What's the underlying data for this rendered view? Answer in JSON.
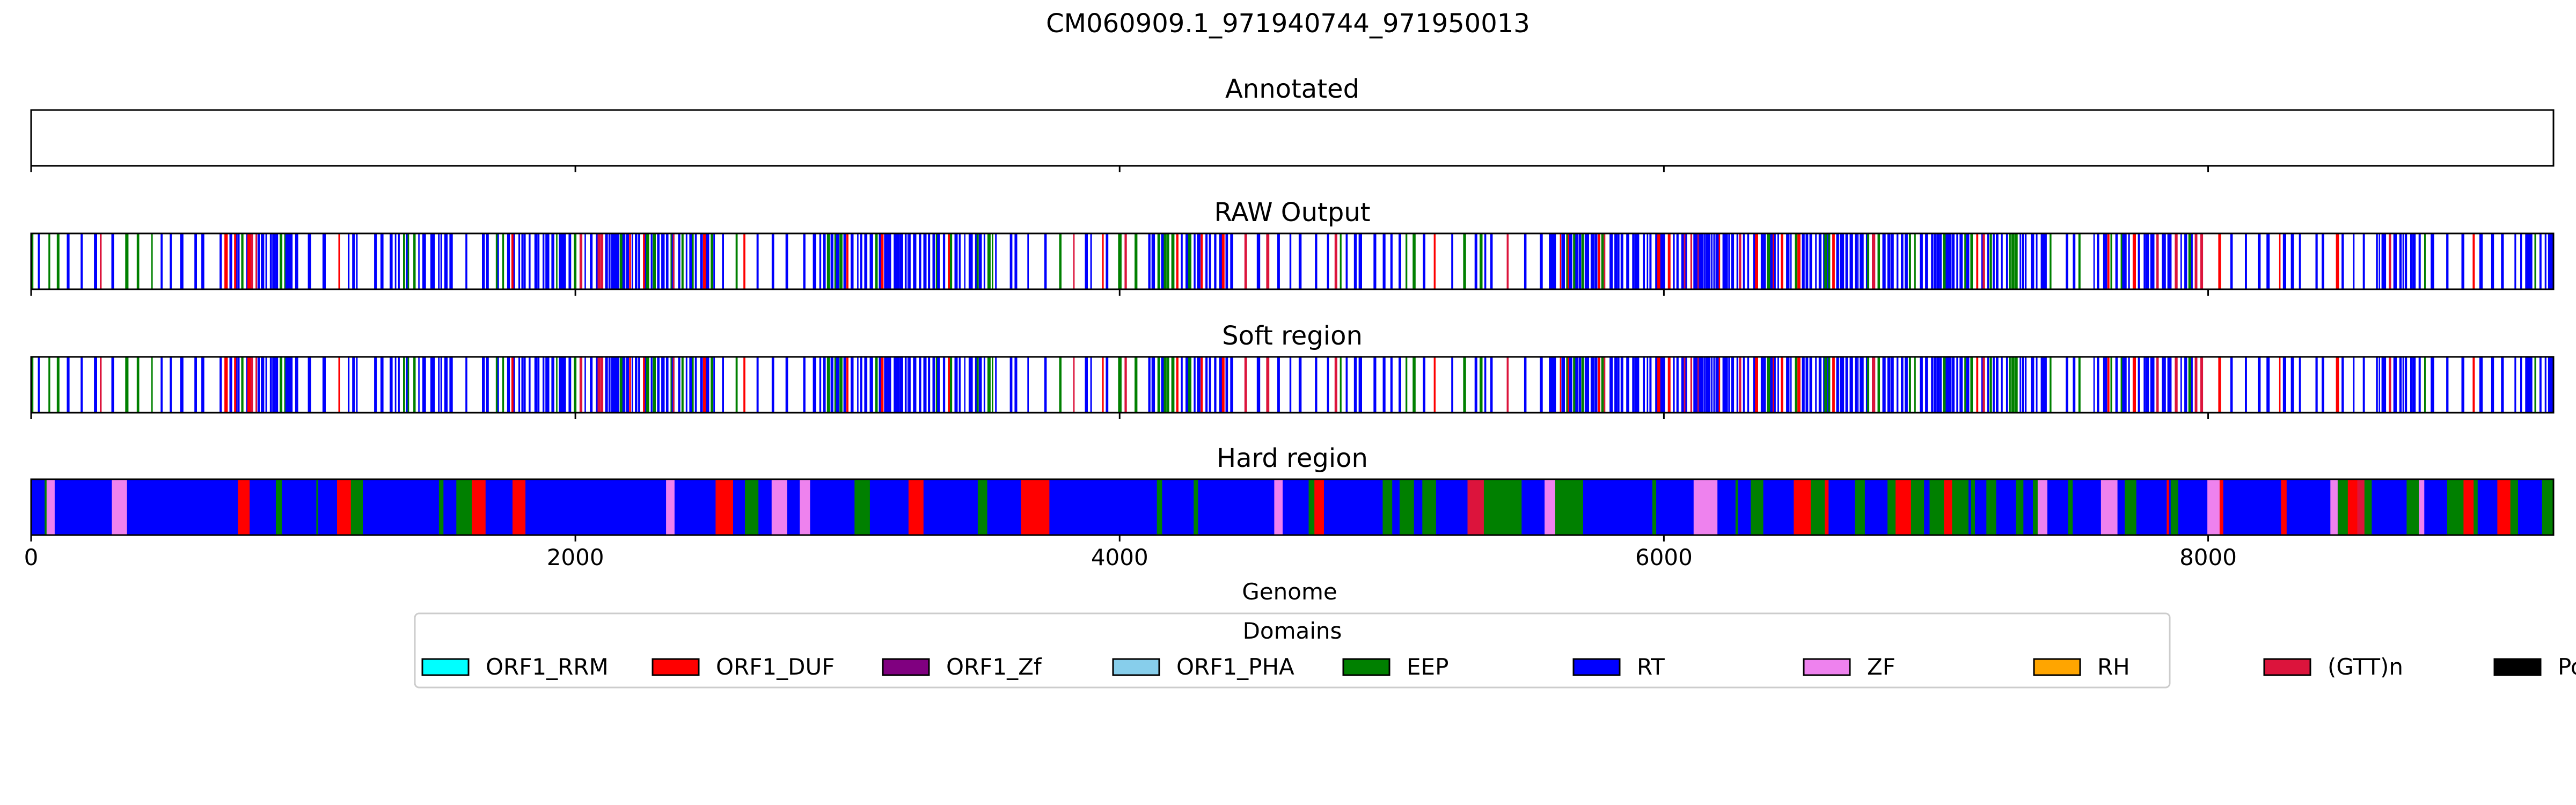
{
  "chart_data": {
    "type": "bar",
    "title": "CM060909.1_971940744_971950013",
    "xlabel": "Genome",
    "xlim": [
      0,
      9269
    ],
    "xticks": [
      0,
      2000,
      4000,
      6000,
      8000
    ],
    "xtick_labels": [
      "0",
      "2000",
      "4000",
      "6000",
      "8000"
    ],
    "legend": {
      "title": "Domains",
      "placement": "lower-center",
      "entries": [
        {
          "label": "ORF1_RRM",
          "color": "#00ffff"
        },
        {
          "label": "ORF1_DUF",
          "color": "#ff0000"
        },
        {
          "label": "ORF1_Zf",
          "color": "#800080"
        },
        {
          "label": "ORF1_PHA",
          "color": "#87ceeb"
        },
        {
          "label": "EEP",
          "color": "#008000"
        },
        {
          "label": "RT",
          "color": "#0000ff"
        },
        {
          "label": "ZF",
          "color": "#ee82ee"
        },
        {
          "label": "RH",
          "color": "#ffa500"
        },
        {
          "label": "(GTT)n",
          "color": "#dc143c"
        },
        {
          "label": "PoliA",
          "color": "#000000"
        }
      ]
    },
    "tracks": [
      {
        "title": "Annotated",
        "mode": "none"
      },
      {
        "title": "RAW Output",
        "mode": "sparse"
      },
      {
        "title": "Soft region",
        "mode": "sparse"
      },
      {
        "title": "Hard region",
        "mode": "dense"
      }
    ]
  }
}
